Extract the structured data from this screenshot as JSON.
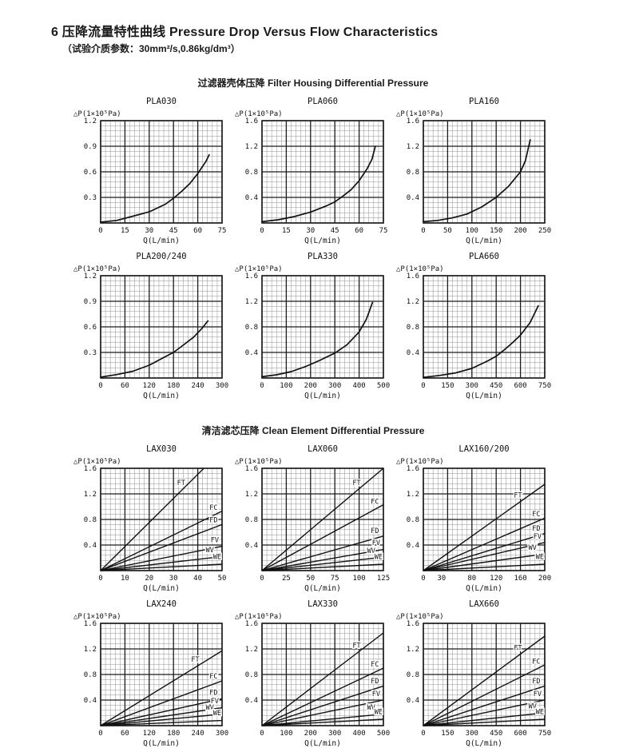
{
  "page": {
    "title_zh": "6 压降流量特性曲线",
    "title_en": "Pressure Drop Versus Flow Characteristics",
    "subtitle": "（试验介质参数：30mm²/s,0.86kg/dm³）"
  },
  "sections": [
    {
      "title": "过滤器壳体压降 Filter Housing Differential Pressure"
    },
    {
      "title": "清洁滤芯压降 Clean Element Differential Pressure"
    }
  ],
  "axis": {
    "ylabel": "△P(1×10⁵Pa)",
    "xlabel": "Q(L/min)"
  },
  "colors": {
    "line": "#111111",
    "grid_major": "#1c1c1c",
    "grid_minor": "#8f8f8f",
    "text": "#111111"
  },
  "chart_data": [
    {
      "id": "PLA030",
      "section": 0,
      "type": "line",
      "title": "PLA030",
      "xlabel": "Q(L/min)",
      "ylabel": "△P(1×10⁵Pa)",
      "xlim": [
        0,
        75
      ],
      "ylim": [
        0,
        1.2
      ],
      "x_ticks": [
        0,
        15,
        30,
        45,
        60,
        75
      ],
      "y_ticks": [
        0.3,
        0.6,
        0.9,
        1.2
      ],
      "grid": "major+minor",
      "curve": [
        [
          0,
          0.01
        ],
        [
          10,
          0.03
        ],
        [
          20,
          0.08
        ],
        [
          30,
          0.13
        ],
        [
          40,
          0.22
        ],
        [
          45,
          0.29
        ],
        [
          50,
          0.37
        ],
        [
          55,
          0.46
        ],
        [
          60,
          0.58
        ],
        [
          65,
          0.72
        ],
        [
          67,
          0.8
        ]
      ]
    },
    {
      "id": "PLA060",
      "section": 0,
      "type": "line",
      "title": "PLA060",
      "xlabel": "Q(L/min)",
      "ylabel": "△P(1×10⁵Pa)",
      "xlim": [
        0,
        75
      ],
      "ylim": [
        0,
        1.6
      ],
      "x_ticks": [
        0,
        15,
        30,
        45,
        60,
        75
      ],
      "y_ticks": [
        0.4,
        0.8,
        1.2,
        1.6
      ],
      "grid": "major+minor",
      "curve": [
        [
          0,
          0.02
        ],
        [
          10,
          0.05
        ],
        [
          20,
          0.1
        ],
        [
          30,
          0.17
        ],
        [
          40,
          0.27
        ],
        [
          45,
          0.33
        ],
        [
          50,
          0.42
        ],
        [
          55,
          0.52
        ],
        [
          60,
          0.66
        ],
        [
          65,
          0.85
        ],
        [
          68,
          1.0
        ],
        [
          70,
          1.2
        ]
      ]
    },
    {
      "id": "PLA160",
      "section": 0,
      "type": "line",
      "title": "PLA160",
      "xlabel": "Q(L/min)",
      "ylabel": "△P(1×10⁵Pa)",
      "xlim": [
        0,
        250
      ],
      "ylim": [
        0,
        1.6
      ],
      "x_ticks": [
        0,
        50,
        100,
        150,
        200,
        250
      ],
      "y_ticks": [
        0.4,
        0.8,
        1.2,
        1.6
      ],
      "grid": "major+minor",
      "curve": [
        [
          0,
          0.02
        ],
        [
          30,
          0.04
        ],
        [
          60,
          0.08
        ],
        [
          90,
          0.14
        ],
        [
          120,
          0.25
        ],
        [
          150,
          0.4
        ],
        [
          175,
          0.57
        ],
        [
          200,
          0.8
        ],
        [
          210,
          0.97
        ],
        [
          220,
          1.3
        ]
      ]
    },
    {
      "id": "PLA200/240",
      "section": 0,
      "type": "line",
      "title": "PLA200/240",
      "xlabel": "Q(L/min)",
      "ylabel": "△P(1×10⁵Pa)",
      "xlim": [
        0,
        300
      ],
      "ylim": [
        0,
        1.2
      ],
      "x_ticks": [
        0,
        60,
        120,
        180,
        240,
        300
      ],
      "y_ticks": [
        0.3,
        0.6,
        0.9,
        1.2
      ],
      "grid": "major+minor",
      "curve": [
        [
          0,
          0.01
        ],
        [
          40,
          0.04
        ],
        [
          80,
          0.08
        ],
        [
          120,
          0.15
        ],
        [
          160,
          0.25
        ],
        [
          180,
          0.3
        ],
        [
          200,
          0.37
        ],
        [
          230,
          0.48
        ],
        [
          250,
          0.58
        ],
        [
          265,
          0.67
        ]
      ]
    },
    {
      "id": "PLA330",
      "section": 0,
      "type": "line",
      "title": "PLA330",
      "xlabel": "Q(L/min)",
      "ylabel": "△P(1×10⁵Pa)",
      "xlim": [
        0,
        500
      ],
      "ylim": [
        0,
        1.6
      ],
      "x_ticks": [
        0,
        100,
        200,
        300,
        400,
        500
      ],
      "y_ticks": [
        0.4,
        0.8,
        1.2,
        1.6
      ],
      "grid": "major+minor",
      "curve": [
        [
          0,
          0.02
        ],
        [
          60,
          0.05
        ],
        [
          120,
          0.1
        ],
        [
          180,
          0.18
        ],
        [
          240,
          0.28
        ],
        [
          300,
          0.39
        ],
        [
          350,
          0.52
        ],
        [
          400,
          0.72
        ],
        [
          430,
          0.92
        ],
        [
          455,
          1.18
        ]
      ]
    },
    {
      "id": "PLA660",
      "section": 0,
      "type": "line",
      "title": "PLA660",
      "xlabel": "Q(L/min)",
      "ylabel": "△P(1×10⁵Pa)",
      "xlim": [
        0,
        750
      ],
      "ylim": [
        0,
        1.6
      ],
      "x_ticks": [
        0,
        150,
        300,
        450,
        600,
        750
      ],
      "y_ticks": [
        0.4,
        0.8,
        1.2,
        1.6
      ],
      "grid": "major+minor",
      "curve": [
        [
          0,
          0.01
        ],
        [
          100,
          0.04
        ],
        [
          200,
          0.08
        ],
        [
          300,
          0.15
        ],
        [
          400,
          0.27
        ],
        [
          450,
          0.34
        ],
        [
          500,
          0.44
        ],
        [
          550,
          0.55
        ],
        [
          600,
          0.67
        ],
        [
          660,
          0.87
        ],
        [
          710,
          1.13
        ]
      ]
    },
    {
      "id": "LAX030",
      "section": 1,
      "type": "line",
      "title": "LAX030",
      "xlabel": "Q(L/min)",
      "ylabel": "△P(1×10⁵Pa)",
      "xlim": [
        0,
        50
      ],
      "ylim": [
        0,
        1.6
      ],
      "x_ticks": [
        0,
        10,
        20,
        30,
        40,
        50
      ],
      "y_ticks": [
        0.4,
        0.8,
        1.2,
        1.6
      ],
      "grid": "major+minor",
      "series": [
        {
          "name": "FT",
          "points": [
            [
              0,
              0
            ],
            [
              42.5,
              1.6
            ]
          ]
        },
        {
          "name": "FC",
          "points": [
            [
              0,
              0
            ],
            [
              50,
              0.93
            ]
          ]
        },
        {
          "name": "FD",
          "points": [
            [
              0,
              0
            ],
            [
              50,
              0.72
            ]
          ]
        },
        {
          "name": "FV",
          "points": [
            [
              0,
              0
            ],
            [
              50,
              0.38
            ]
          ]
        },
        {
          "name": "WV",
          "points": [
            [
              0,
              0
            ],
            [
              50,
              0.22
            ]
          ]
        },
        {
          "name": "WE",
          "points": [
            [
              0,
              0
            ],
            [
              50,
              0.1
            ]
          ]
        }
      ]
    },
    {
      "id": "LAX060",
      "section": 1,
      "type": "line",
      "title": "LAX060",
      "xlabel": "Q(L/min)",
      "ylabel": "△P(1×10⁵Pa)",
      "xlim": [
        0,
        125
      ],
      "ylim": [
        0,
        1.6
      ],
      "x_ticks": [
        0,
        25,
        50,
        75,
        100,
        125
      ],
      "y_ticks": [
        0.4,
        0.8,
        1.2,
        1.6
      ],
      "grid": "major+minor",
      "series": [
        {
          "name": "FT",
          "points": [
            [
              0,
              0
            ],
            [
              125,
              1.6
            ]
          ]
        },
        {
          "name": "FC",
          "points": [
            [
              0,
              0
            ],
            [
              125,
              1.03
            ]
          ]
        },
        {
          "name": "FD",
          "points": [
            [
              0,
              0
            ],
            [
              125,
              0.54
            ]
          ]
        },
        {
          "name": "FV",
          "points": [
            [
              0,
              0
            ],
            [
              125,
              0.33
            ]
          ]
        },
        {
          "name": "WV",
          "points": [
            [
              0,
              0
            ],
            [
              125,
              0.21
            ]
          ]
        },
        {
          "name": "WE",
          "points": [
            [
              0,
              0
            ],
            [
              125,
              0.1
            ]
          ]
        }
      ]
    },
    {
      "id": "LAX160/200",
      "section": 1,
      "type": "line",
      "title": "LAX160/200",
      "xlabel": "Q(L/min)",
      "ylabel": "△P(1×10⁵Pa)",
      "xlim": [
        0,
        200
      ],
      "ylim": [
        0,
        1.6
      ],
      "x_ticks": [
        0,
        30,
        80,
        120,
        160,
        200
      ],
      "y_ticks": [
        0.4,
        0.8,
        1.2,
        1.6
      ],
      "grid": "major+minor",
      "series": [
        {
          "name": "FT",
          "points": [
            [
              0,
              0
            ],
            [
              200,
              1.35
            ]
          ]
        },
        {
          "name": "FC",
          "points": [
            [
              0,
              0
            ],
            [
              200,
              0.82
            ]
          ]
        },
        {
          "name": "FD",
          "points": [
            [
              0,
              0
            ],
            [
              200,
              0.58
            ]
          ]
        },
        {
          "name": "FV",
          "points": [
            [
              0,
              0
            ],
            [
              200,
              0.44
            ]
          ]
        },
        {
          "name": "WV",
          "points": [
            [
              0,
              0
            ],
            [
              200,
              0.26
            ]
          ]
        },
        {
          "name": "WE",
          "points": [
            [
              0,
              0
            ],
            [
              200,
              0.1
            ]
          ]
        }
      ]
    },
    {
      "id": "LAX240",
      "section": 1,
      "type": "line",
      "title": "LAX240",
      "xlabel": "Q(L/min)",
      "ylabel": "△P(1×10⁵Pa)",
      "xlim": [
        0,
        300
      ],
      "ylim": [
        0,
        1.6
      ],
      "x_ticks": [
        0,
        60,
        120,
        180,
        240,
        300
      ],
      "y_ticks": [
        0.4,
        0.8,
        1.2,
        1.6
      ],
      "grid": "major+minor",
      "series": [
        {
          "name": "FT",
          "points": [
            [
              0,
              0
            ],
            [
              300,
              1.17
            ]
          ]
        },
        {
          "name": "FC",
          "points": [
            [
              0,
              0
            ],
            [
              300,
              0.7
            ]
          ]
        },
        {
          "name": "FD",
          "points": [
            [
              0,
              0
            ],
            [
              300,
              0.42
            ]
          ]
        },
        {
          "name": "FV",
          "points": [
            [
              0,
              0
            ],
            [
              300,
              0.28
            ]
          ]
        },
        {
          "name": "WV",
          "points": [
            [
              0,
              0
            ],
            [
              300,
              0.18
            ]
          ]
        },
        {
          "name": "WE",
          "points": [
            [
              0,
              0
            ],
            [
              300,
              0.08
            ]
          ]
        }
      ]
    },
    {
      "id": "LAX330",
      "section": 1,
      "type": "line",
      "title": "LAX330",
      "xlabel": "Q(L/min)",
      "ylabel": "△P(1×10⁵Pa)",
      "xlim": [
        0,
        500
      ],
      "ylim": [
        0,
        1.6
      ],
      "x_ticks": [
        0,
        100,
        200,
        300,
        400,
        500
      ],
      "y_ticks": [
        0.4,
        0.8,
        1.2,
        1.6
      ],
      "grid": "major+minor",
      "series": [
        {
          "name": "FT",
          "points": [
            [
              0,
              0
            ],
            [
              500,
              1.45
            ]
          ]
        },
        {
          "name": "FC",
          "points": [
            [
              0,
              0
            ],
            [
              500,
              0.9
            ]
          ]
        },
        {
          "name": "FD",
          "points": [
            [
              0,
              0
            ],
            [
              500,
              0.62
            ]
          ]
        },
        {
          "name": "FV",
          "points": [
            [
              0,
              0
            ],
            [
              500,
              0.4
            ]
          ]
        },
        {
          "name": "WV",
          "points": [
            [
              0,
              0
            ],
            [
              500,
              0.18
            ]
          ]
        },
        {
          "name": "WE",
          "points": [
            [
              0,
              0
            ],
            [
              500,
              0.1
            ]
          ]
        }
      ]
    },
    {
      "id": "LAX660",
      "section": 1,
      "type": "line",
      "title": "LAX660",
      "xlabel": "Q(L/min)",
      "ylabel": "△P(1×10⁵Pa)",
      "xlim": [
        0,
        750
      ],
      "ylim": [
        0,
        1.6
      ],
      "x_ticks": [
        0,
        150,
        300,
        450,
        600,
        750
      ],
      "y_ticks": [
        0.4,
        0.8,
        1.2,
        1.6
      ],
      "grid": "major+minor",
      "series": [
        {
          "name": "FT",
          "points": [
            [
              0,
              0
            ],
            [
              750,
              1.4
            ]
          ]
        },
        {
          "name": "FC",
          "points": [
            [
              0,
              0
            ],
            [
              750,
              0.95
            ]
          ]
        },
        {
          "name": "FD",
          "points": [
            [
              0,
              0
            ],
            [
              750,
              0.62
            ]
          ]
        },
        {
          "name": "FV",
          "points": [
            [
              0,
              0
            ],
            [
              750,
              0.4
            ]
          ]
        },
        {
          "name": "WV",
          "points": [
            [
              0,
              0
            ],
            [
              750,
              0.2
            ]
          ]
        },
        {
          "name": "WE",
          "points": [
            [
              0,
              0
            ],
            [
              750,
              0.1
            ]
          ]
        }
      ]
    }
  ]
}
